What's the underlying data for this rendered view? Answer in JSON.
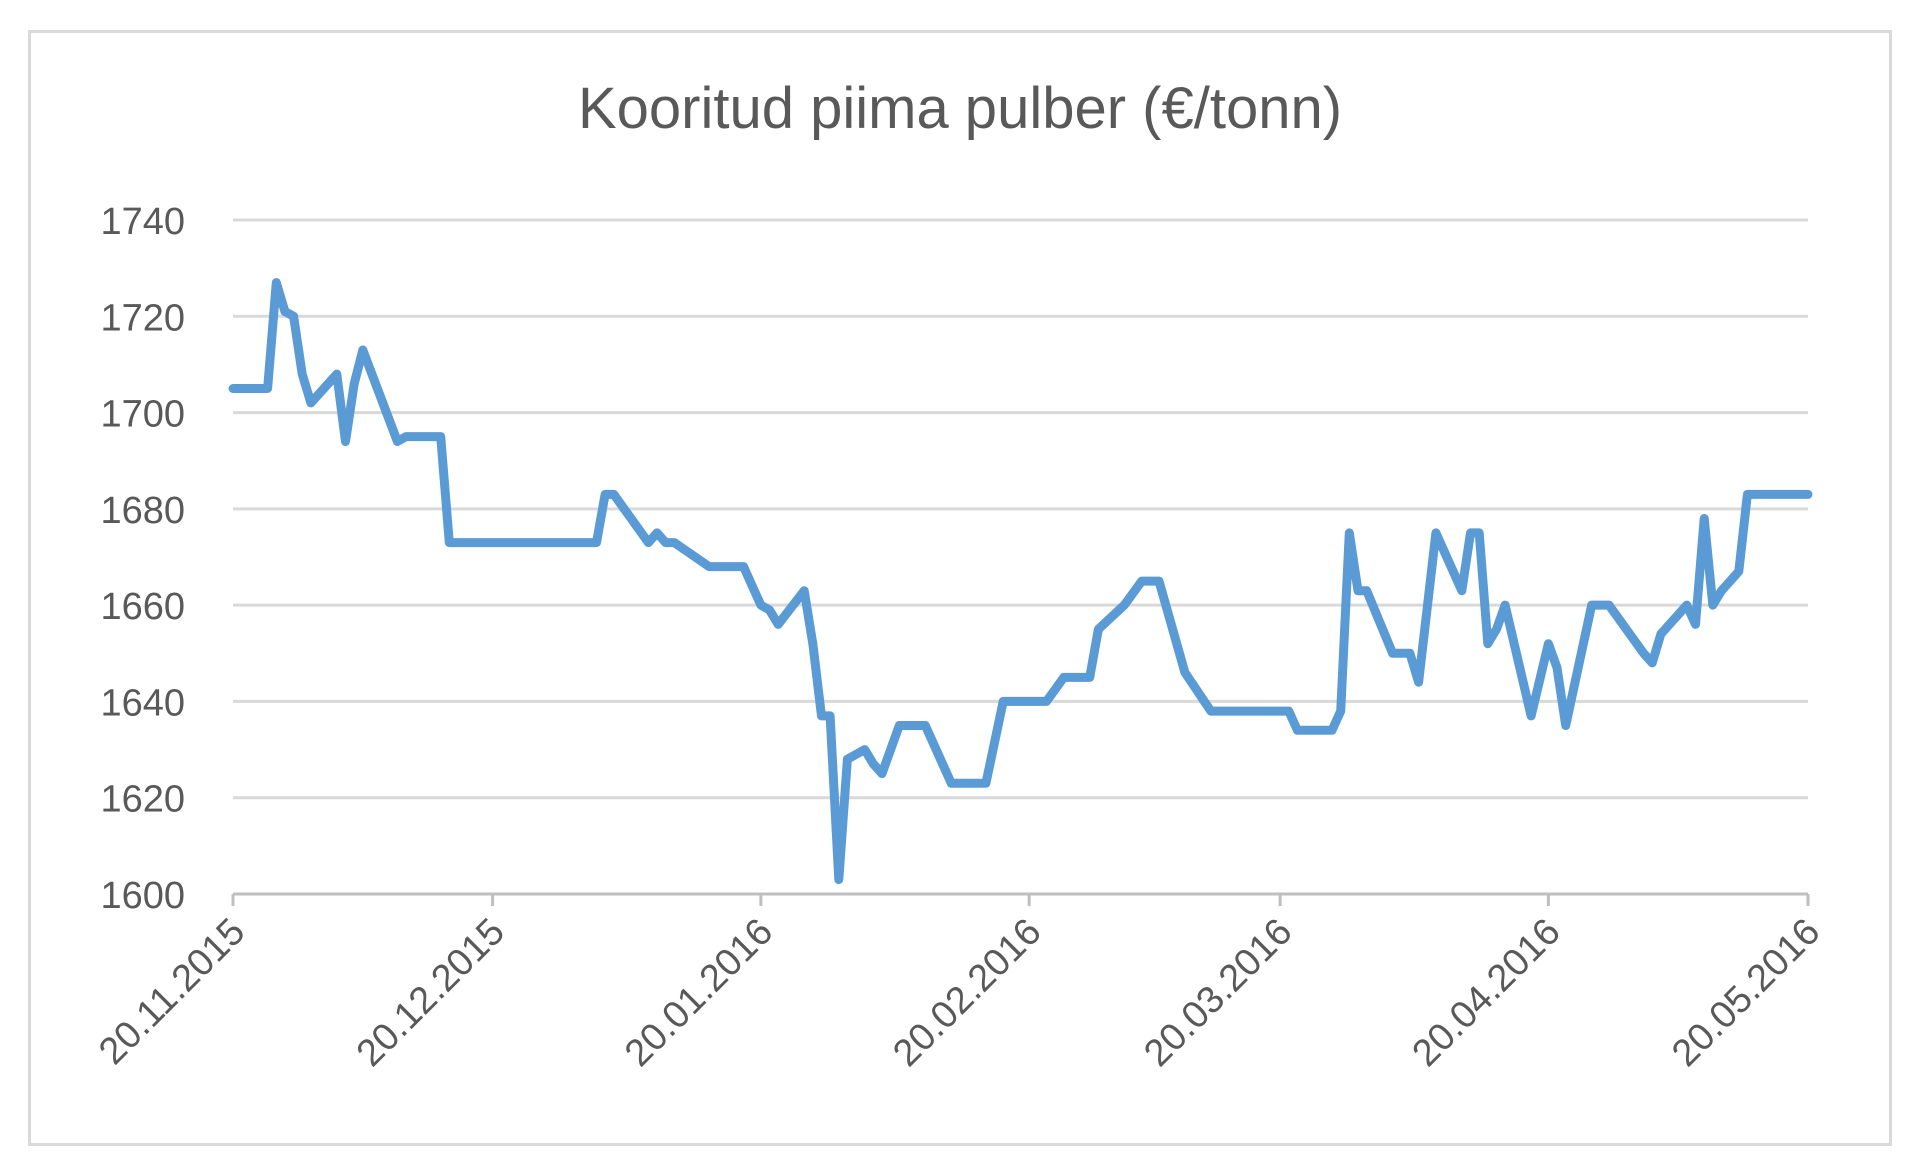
{
  "chart_data": {
    "type": "line",
    "title": "Kooritud piima pulber (€/tonn)",
    "xlabel": "",
    "ylabel": "",
    "ylim": [
      1600,
      1740
    ],
    "yticks": [
      1600,
      1620,
      1640,
      1660,
      1680,
      1700,
      1720,
      1740
    ],
    "xlim": [
      "2015-11-20",
      "2016-05-20"
    ],
    "xticks": [
      "20.11.2015",
      "20.12.2015",
      "20.01.2016",
      "20.02.2016",
      "20.03.2016",
      "20.04.2016",
      "20.05.2016"
    ],
    "grid": true,
    "legend": "none",
    "line_color": "#5b9bd5",
    "series": [
      {
        "x": [
          "2015-11-20",
          "2015-11-24",
          "2015-11-25",
          "2015-11-26",
          "2015-11-27",
          "2015-11-28",
          "2015-11-29",
          "2015-12-02",
          "2015-12-03",
          "2015-12-04",
          "2015-12-05",
          "2015-12-09",
          "2015-12-10",
          "2015-12-11",
          "2015-12-14",
          "2015-12-15",
          "2016-01-01",
          "2016-01-02",
          "2016-01-03",
          "2016-01-07",
          "2016-01-08",
          "2016-01-09",
          "2016-01-10",
          "2016-01-14",
          "2016-01-16",
          "2016-01-18",
          "2016-01-19",
          "2016-01-20",
          "2016-01-21",
          "2016-01-22",
          "2016-01-25",
          "2016-01-26",
          "2016-01-27",
          "2016-01-28",
          "2016-01-29",
          "2016-01-30",
          "2016-02-01",
          "2016-02-02",
          "2016-02-03",
          "2016-02-05",
          "2016-02-07",
          "2016-02-08",
          "2016-02-11",
          "2016-02-15",
          "2016-02-17",
          "2016-02-22",
          "2016-02-24",
          "2016-02-27",
          "2016-02-28",
          "2016-03-02",
          "2016-03-04",
          "2016-03-06",
          "2016-03-09",
          "2016-03-12",
          "2016-03-13",
          "2016-03-21",
          "2016-03-22",
          "2016-03-26",
          "2016-03-27",
          "2016-03-28",
          "2016-03-29",
          "2016-03-30",
          "2016-04-02",
          "2016-04-04",
          "2016-04-05",
          "2016-04-07",
          "2016-04-10",
          "2016-04-11",
          "2016-04-12",
          "2016-04-13",
          "2016-04-14",
          "2016-04-15",
          "2016-04-18",
          "2016-04-20",
          "2016-04-21",
          "2016-04-22",
          "2016-04-25",
          "2016-04-26",
          "2016-04-27",
          "2016-05-01",
          "2016-05-02",
          "2016-05-03",
          "2016-05-04",
          "2016-05-06",
          "2016-05-07",
          "2016-05-08",
          "2016-05-09",
          "2016-05-10",
          "2016-05-11",
          "2016-05-12",
          "2016-05-13",
          "2016-05-15",
          "2016-05-17",
          "2016-05-18",
          "2016-05-19",
          "2016-05-20"
        ],
        "y": [
          1705,
          1705,
          1727,
          1721,
          1720,
          1708,
          1702,
          1708,
          1694,
          1706,
          1713,
          1694,
          1695,
          1695,
          1695,
          1673,
          1673,
          1683,
          1683,
          1673,
          1675,
          1673,
          1673,
          1668,
          1668,
          1668,
          1664,
          1660,
          1659,
          1656,
          1663,
          1652,
          1637,
          1637,
          1603,
          1628,
          1630,
          1627,
          1625,
          1635,
          1635,
          1635,
          1623,
          1623,
          1640,
          1640,
          1645,
          1645,
          1655,
          1660,
          1665,
          1665,
          1646,
          1638,
          1638,
          1638,
          1634,
          1634,
          1638,
          1675,
          1663,
          1663,
          1650,
          1650,
          1644,
          1675,
          1663,
          1675,
          1675,
          1652,
          1655,
          1660,
          1637,
          1652,
          1647,
          1635,
          1660,
          1660,
          1660,
          1650,
          1648,
          1654,
          1656,
          1660,
          1656,
          1678,
          1660,
          1663,
          1665,
          1667,
          1683,
          1683,
          1683,
          1683,
          1683,
          1683
        ]
      }
    ]
  }
}
